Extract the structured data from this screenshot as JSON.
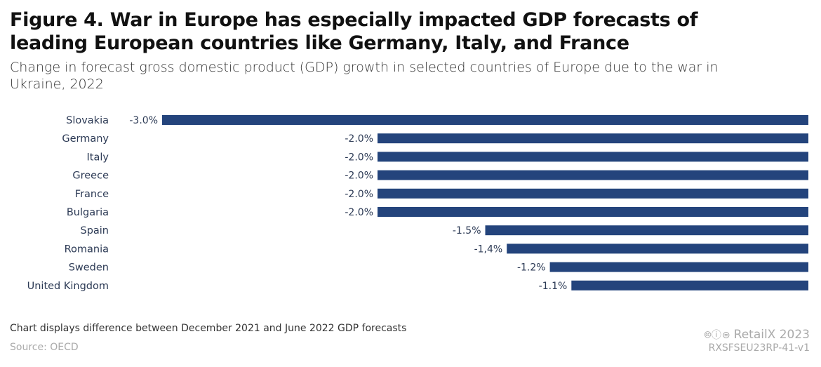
{
  "header": {
    "title": "Figure 4. War in Europe has especially impacted GDP forecasts of leading European countries like Germany, Italy, and France",
    "subtitle": "Change in forecast gross domestic product (GDP) growth in selected countries of Europe due to the war in Ukraine, 2022"
  },
  "footer": {
    "note": "Chart displays difference between December 2021 and June 2022 GDP forecasts",
    "source": "Source: OECD",
    "license_icons": "cc-by-nd-icons",
    "brand": "RetailX 2023",
    "code": "RXSFSEU23RP-41-v1"
  },
  "chart_data": {
    "type": "bar",
    "orientation": "horizontal",
    "title": "Change in forecast GDP growth due to the war in Ukraine, 2022",
    "xlabel": "",
    "ylabel": "",
    "categories": [
      "Slovakia",
      "Germany",
      "Italy",
      "Greece",
      "France",
      "Bulgaria",
      "Spain",
      "Romania",
      "Sweden",
      "United Kingdom"
    ],
    "values": [
      -3.0,
      -2.0,
      -2.0,
      -2.0,
      -2.0,
      -2.0,
      -1.5,
      -1.4,
      -1.2,
      -1.1
    ],
    "data_labels": [
      "-3.0%",
      "-2.0%",
      "-2.0%",
      "-2.0%",
      "-2.0%",
      "-2.0%",
      "-1.5%",
      "-1,4%",
      "-1.2%",
      "-1.1%"
    ],
    "unit": "%",
    "xlim": [
      -3.0,
      0
    ],
    "grid": false,
    "legend": "none",
    "bar_color": "#24447c"
  }
}
